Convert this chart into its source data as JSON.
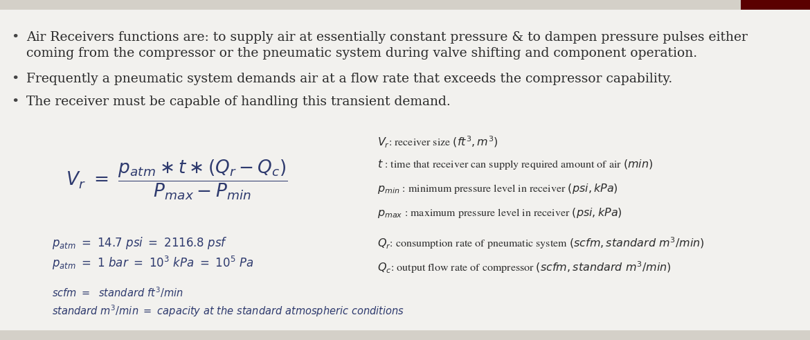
{
  "fig_width": 11.7,
  "fig_height": 4.91,
  "bg_color": "#d4d0c8",
  "content_bg": "#f2f1ee",
  "top_bar_color": "#d4d0c8",
  "accent_color": "#5a0000",
  "text_dark": "#2b2b2b",
  "text_blue": "#2e3a6e",
  "text_italic_blue": "#3a5a8a",
  "bullet_color": "#444444",
  "bullet1_line1": "Air Receivers functions are: to supply air at essentially constant pressure & to dampen pressure pulses either",
  "bullet1_line2": "coming from the compressor or the pneumatic system during valve shifting and component operation.",
  "bullet2": "Frequently a pneumatic system demands air at a flow rate that exceeds the compressor capability.",
  "bullet3": "The receiver must be capable of handling this transient demand.",
  "formula_fontsize": 19,
  "bullet_fontsize": 13.5,
  "def_fontsize": 11.5,
  "patm_fontsize": 12,
  "note_fontsize": 10.5
}
